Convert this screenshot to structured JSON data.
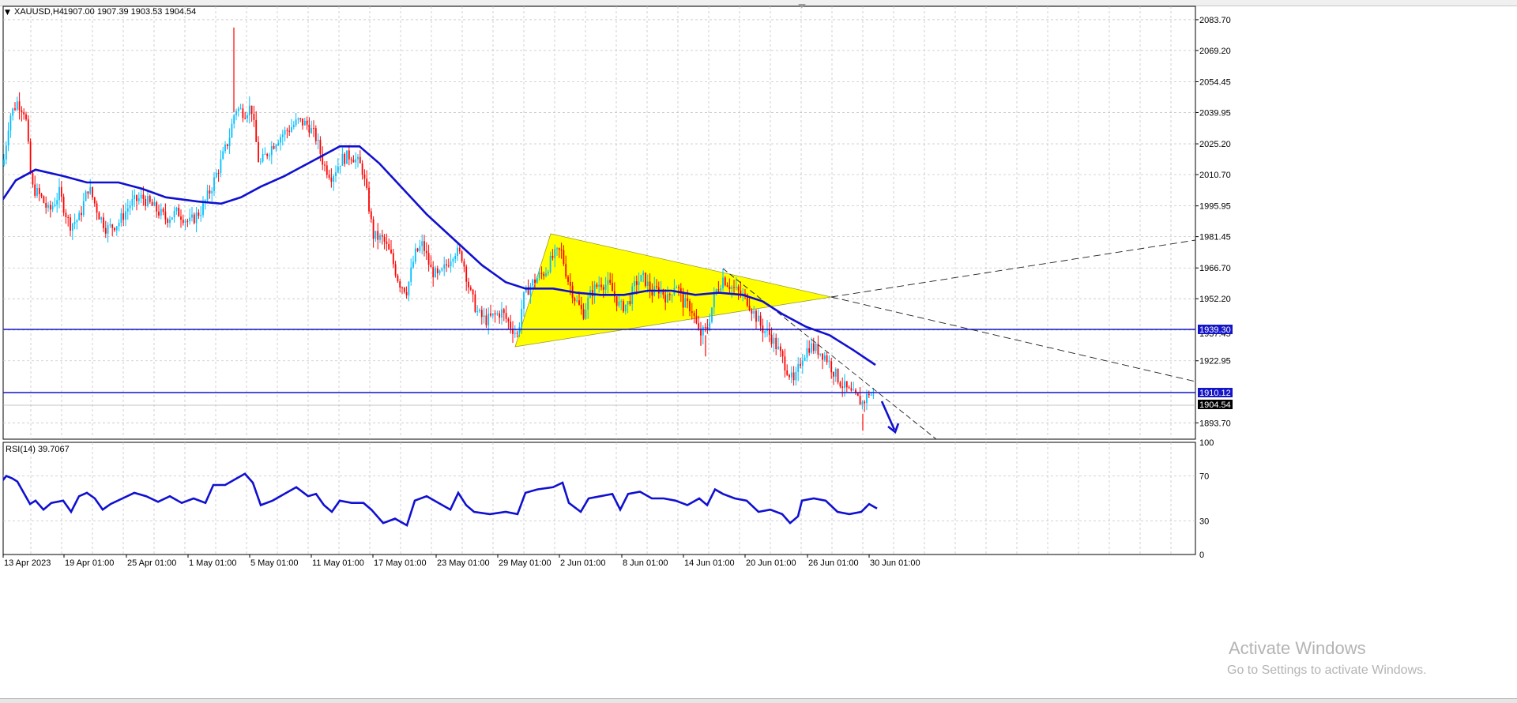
{
  "main": {
    "symbol_label": "XAUUSD,H4",
    "ohlc": "1907.00 1907.39 1903.53 1904.54"
  },
  "price_axis": {
    "ticks": [
      "2083.70",
      "2069.20",
      "2054.45",
      "2039.95",
      "2025.20",
      "2010.70",
      "1995.95",
      "1981.45",
      "1966.70",
      "1952.20",
      "1922.95",
      "1893.70"
    ],
    "hline_labels": [
      "1939.30",
      "1910.12"
    ],
    "current_price": "1904.54",
    "hidden_tick": "1937.45"
  },
  "time_axis": {
    "labels": [
      "13 Apr 2023",
      "19 Apr 01:00",
      "25 Apr 01:00",
      "1 May 01:00",
      "5 May 01:00",
      "11 May 01:00",
      "17 May 01:00",
      "23 May 01:00",
      "29 May 01:00",
      "2 Jun 01:00",
      "8 Jun 01:00",
      "14 Jun 01:00",
      "20 Jun 01:00",
      "26 Jun 01:00",
      "30 Jun 01:00"
    ]
  },
  "rsi": {
    "label": "RSI(14) 39.7067",
    "levels": [
      "100",
      "70",
      "30",
      "0"
    ]
  },
  "colors": {
    "bull": "#00bfff",
    "bear": "#ff0000",
    "ma": "#1010d0",
    "hline": "#1515c8",
    "triangle": "#ffff00",
    "grid": "#c0c0c0"
  },
  "watermark": {
    "title": "Activate Windows",
    "subtitle": "Go to Settings to activate Windows."
  },
  "chart_data": {
    "type": "candlestick",
    "symbol": "XAUUSD",
    "timeframe": "H4",
    "price_range": [
      1886,
      2090
    ],
    "ma_points": [
      [
        0,
        1997
      ],
      [
        20,
        2008
      ],
      [
        45,
        2013
      ],
      [
        80,
        2010
      ],
      [
        110,
        2007
      ],
      [
        150,
        2007
      ],
      [
        180,
        2004
      ],
      [
        210,
        2000
      ],
      [
        250,
        1998
      ],
      [
        280,
        1997
      ],
      [
        305,
        2000
      ],
      [
        330,
        2005
      ],
      [
        360,
        2010
      ],
      [
        395,
        2017
      ],
      [
        430,
        2024
      ],
      [
        455,
        2024
      ],
      [
        480,
        2016
      ],
      [
        510,
        2004
      ],
      [
        540,
        1992
      ],
      [
        575,
        1980
      ],
      [
        610,
        1968
      ],
      [
        640,
        1960
      ],
      [
        665,
        1957
      ],
      [
        700,
        1957
      ],
      [
        730,
        1955
      ],
      [
        760,
        1954
      ],
      [
        790,
        1954
      ],
      [
        820,
        1956
      ],
      [
        850,
        1956
      ],
      [
        880,
        1954
      ],
      [
        910,
        1955
      ],
      [
        940,
        1954
      ],
      [
        965,
        1951
      ],
      [
        990,
        1945
      ],
      [
        1020,
        1939
      ],
      [
        1050,
        1935
      ],
      [
        1080,
        1928
      ],
      [
        1108,
        1921
      ]
    ],
    "trendline_upper": [
      [
        1981.45,
        "2 Jun"
      ],
      [
        1953.5,
        "18 Jun"
      ]
    ],
    "horizontal_levels": [
      1939.3,
      1910.12
    ],
    "rsi_series": [
      [
        0,
        63
      ],
      [
        8,
        70
      ],
      [
        15,
        68
      ],
      [
        22,
        65
      ],
      [
        30,
        55
      ],
      [
        38,
        45
      ],
      [
        45,
        48
      ],
      [
        55,
        40
      ],
      [
        65,
        46
      ],
      [
        80,
        48
      ],
      [
        90,
        38
      ],
      [
        100,
        52
      ],
      [
        110,
        55
      ],
      [
        120,
        50
      ],
      [
        130,
        40
      ],
      [
        140,
        45
      ],
      [
        155,
        50
      ],
      [
        170,
        55
      ],
      [
        185,
        52
      ],
      [
        200,
        47
      ],
      [
        215,
        52
      ],
      [
        230,
        46
      ],
      [
        245,
        50
      ],
      [
        260,
        46
      ],
      [
        270,
        62
      ],
      [
        285,
        62
      ],
      [
        300,
        68
      ],
      [
        310,
        72
      ],
      [
        320,
        64
      ],
      [
        330,
        44
      ],
      [
        345,
        48
      ],
      [
        360,
        54
      ],
      [
        375,
        60
      ],
      [
        390,
        52
      ],
      [
        400,
        54
      ],
      [
        410,
        44
      ],
      [
        420,
        38
      ],
      [
        430,
        48
      ],
      [
        445,
        46
      ],
      [
        460,
        46
      ],
      [
        470,
        40
      ],
      [
        485,
        28
      ],
      [
        500,
        32
      ],
      [
        515,
        26
      ],
      [
        525,
        48
      ],
      [
        540,
        52
      ],
      [
        555,
        46
      ],
      [
        570,
        40
      ],
      [
        580,
        55
      ],
      [
        590,
        44
      ],
      [
        600,
        38
      ],
      [
        620,
        36
      ],
      [
        640,
        38
      ],
      [
        655,
        36
      ],
      [
        665,
        55
      ],
      [
        680,
        58
      ],
      [
        700,
        60
      ],
      [
        712,
        64
      ],
      [
        720,
        46
      ],
      [
        735,
        38
      ],
      [
        745,
        50
      ],
      [
        760,
        52
      ],
      [
        775,
        54
      ],
      [
        785,
        40
      ],
      [
        795,
        54
      ],
      [
        810,
        56
      ],
      [
        825,
        50
      ],
      [
        840,
        50
      ],
      [
        855,
        48
      ],
      [
        870,
        44
      ],
      [
        885,
        50
      ],
      [
        895,
        44
      ],
      [
        905,
        58
      ],
      [
        915,
        54
      ],
      [
        930,
        50
      ],
      [
        945,
        48
      ],
      [
        960,
        38
      ],
      [
        975,
        40
      ],
      [
        990,
        36
      ],
      [
        1000,
        28
      ],
      [
        1010,
        34
      ],
      [
        1015,
        48
      ],
      [
        1030,
        50
      ],
      [
        1045,
        48
      ],
      [
        1060,
        38
      ],
      [
        1075,
        36
      ],
      [
        1090,
        38
      ],
      [
        1100,
        45
      ],
      [
        1110,
        41
      ]
    ],
    "rsi_range": [
      0,
      100
    ]
  }
}
